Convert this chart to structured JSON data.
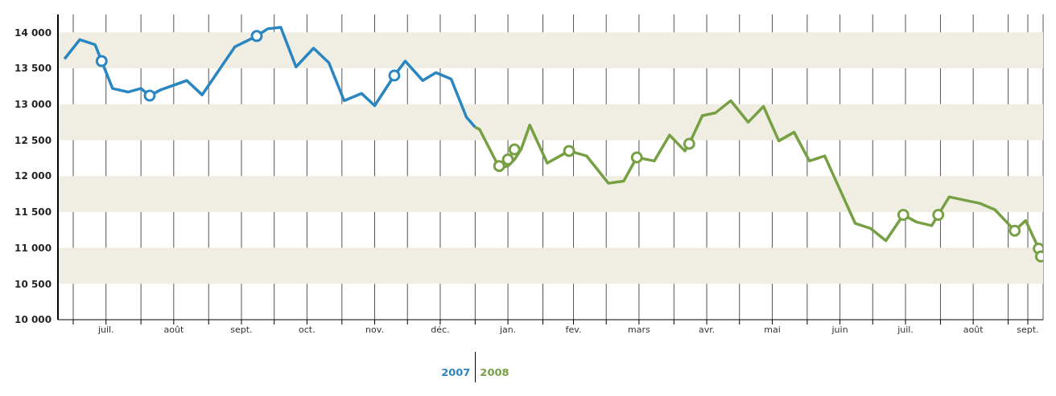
{
  "chart_data": {
    "type": "line",
    "xlim": [
      "2007-06-24",
      "2008-09-17"
    ],
    "ylim": [
      10000,
      14250
    ],
    "yticks": [
      {
        "value": 10000,
        "label": "10 000"
      },
      {
        "value": 10500,
        "label": "10 500"
      },
      {
        "value": 11000,
        "label": "11 000"
      },
      {
        "value": 11500,
        "label": "11 500"
      },
      {
        "value": 12000,
        "label": "12 000"
      },
      {
        "value": 12500,
        "label": "12 500"
      },
      {
        "value": 13000,
        "label": "13 000"
      },
      {
        "value": 13500,
        "label": "13 500"
      },
      {
        "value": 14000,
        "label": "14 000"
      }
    ],
    "xticks": [
      {
        "value": "2007-07-01",
        "label": null
      },
      {
        "value": "2007-07-16",
        "label": "juil."
      },
      {
        "value": "2007-08-01",
        "label": null
      },
      {
        "value": "2007-08-16",
        "label": "août"
      },
      {
        "value": "2007-09-01",
        "label": null
      },
      {
        "value": "2007-09-16",
        "label": "sept."
      },
      {
        "value": "2007-10-01",
        "label": null
      },
      {
        "value": "2007-10-16",
        "label": "oct."
      },
      {
        "value": "2007-11-01",
        "label": null
      },
      {
        "value": "2007-11-16",
        "label": "nov."
      },
      {
        "value": "2007-12-01",
        "label": null
      },
      {
        "value": "2007-12-16",
        "label": "déc."
      },
      {
        "value": "2008-01-01",
        "label": null
      },
      {
        "value": "2008-01-16",
        "label": "jan."
      },
      {
        "value": "2008-02-01",
        "label": null
      },
      {
        "value": "2008-02-15",
        "label": "fev."
      },
      {
        "value": "2008-03-01",
        "label": null
      },
      {
        "value": "2008-03-16",
        "label": "mars"
      },
      {
        "value": "2008-04-01",
        "label": null
      },
      {
        "value": "2008-04-16",
        "label": "avr."
      },
      {
        "value": "2008-05-01",
        "label": null
      },
      {
        "value": "2008-05-16",
        "label": "mai"
      },
      {
        "value": "2008-06-01",
        "label": null
      },
      {
        "value": "2008-06-16",
        "label": "juin"
      },
      {
        "value": "2008-07-01",
        "label": null
      },
      {
        "value": "2008-07-16",
        "label": "juil."
      },
      {
        "value": "2008-08-01",
        "label": null
      },
      {
        "value": "2008-08-16",
        "label": "août"
      },
      {
        "value": "2008-09-01",
        "label": null
      },
      {
        "value": "2008-09-10",
        "label": "sept."
      }
    ],
    "grid": "x",
    "legend": false,
    "line_style": "solid",
    "bands": [
      {
        "axis": "y",
        "from": 10500,
        "to": 11000,
        "color": "#f0eee2"
      },
      {
        "axis": "y",
        "from": 11500,
        "to": 12000,
        "color": "#f0eee2"
      },
      {
        "axis": "y",
        "from": 12500,
        "to": 13000,
        "color": "#f0eee2"
      },
      {
        "axis": "y",
        "from": 13500,
        "to": 14000,
        "color": "#f0eee2"
      }
    ],
    "annotations": [
      "2007",
      "2008"
    ],
    "series": [
      {
        "color": "#2a86c1",
        "x": [
          "2007-06-27",
          "2007-07-04",
          "2007-07-11",
          "2007-07-14",
          "2007-07-19",
          "2007-07-26",
          "2007-08-01",
          "2007-08-05",
          "2007-08-10",
          "2007-08-22",
          "2007-08-29",
          "2007-09-13",
          "2007-09-23",
          "2007-09-28",
          "2007-10-04",
          "2007-10-11",
          "2007-10-19",
          "2007-10-26",
          "2007-11-02",
          "2007-11-10",
          "2007-11-16",
          "2007-11-25",
          "2007-11-30",
          "2007-12-08",
          "2007-12-14",
          "2007-12-21",
          "2007-12-28",
          "2008-01-01"
        ],
        "values": [
          13630,
          13900,
          13830,
          13600,
          13220,
          13170,
          13220,
          13120,
          13200,
          13330,
          13130,
          13800,
          13950,
          14050,
          14070,
          13520,
          13780,
          13580,
          13050,
          13150,
          12980,
          13400,
          13600,
          13330,
          13440,
          13350,
          12820,
          12680
        ]
      },
      {
        "color": "#76a043",
        "x": [
          "2008-01-01",
          "2008-01-03",
          "2008-01-12",
          "2008-01-16",
          "2008-01-19",
          "2008-01-22",
          "2008-01-26",
          "2008-02-03",
          "2008-02-13",
          "2008-02-21",
          "2008-03-02",
          "2008-03-09",
          "2008-03-15",
          "2008-03-23",
          "2008-03-30",
          "2008-04-06",
          "2008-04-08",
          "2008-04-14",
          "2008-04-20",
          "2008-04-27",
          "2008-05-05",
          "2008-05-12",
          "2008-05-19",
          "2008-05-26",
          "2008-06-02",
          "2008-06-09",
          "2008-06-23",
          "2008-06-30",
          "2008-07-07",
          "2008-07-15",
          "2008-07-21",
          "2008-07-28",
          "2008-07-31",
          "2008-08-05",
          "2008-08-19",
          "2008-08-26",
          "2008-09-04",
          "2008-09-09",
          "2008-09-15",
          "2008-09-16"
        ],
        "values": [
          12680,
          12650,
          12120,
          12140,
          12230,
          12370,
          12710,
          12180,
          12350,
          12280,
          11900,
          11930,
          12260,
          12210,
          12570,
          12350,
          12450,
          12840,
          12880,
          13050,
          12750,
          12970,
          12490,
          12610,
          12210,
          12280,
          11340,
          11270,
          11100,
          11460,
          11360,
          11310,
          11460,
          11710,
          11620,
          11530,
          11240,
          11380,
          10990,
          10880
        ]
      },
      {
        "type": "scatter",
        "color": "#2a86c1",
        "marker": "circle",
        "x": [
          "2007-07-14",
          "2007-08-05",
          "2007-09-23",
          "2007-11-25"
        ],
        "values": [
          13600,
          13120,
          13950,
          13400
        ]
      },
      {
        "type": "scatter",
        "color": "#76a043",
        "marker": "circle",
        "x": [
          "2008-01-12",
          "2008-01-16",
          "2008-01-19",
          "2008-02-13",
          "2008-03-15",
          "2008-04-08",
          "2008-07-15",
          "2008-07-31",
          "2008-09-04",
          "2008-09-15",
          "2008-09-16"
        ],
        "values": [
          12140,
          12230,
          12370,
          12350,
          12260,
          12450,
          11460,
          11460,
          11240,
          10990,
          10880
        ]
      }
    ]
  }
}
